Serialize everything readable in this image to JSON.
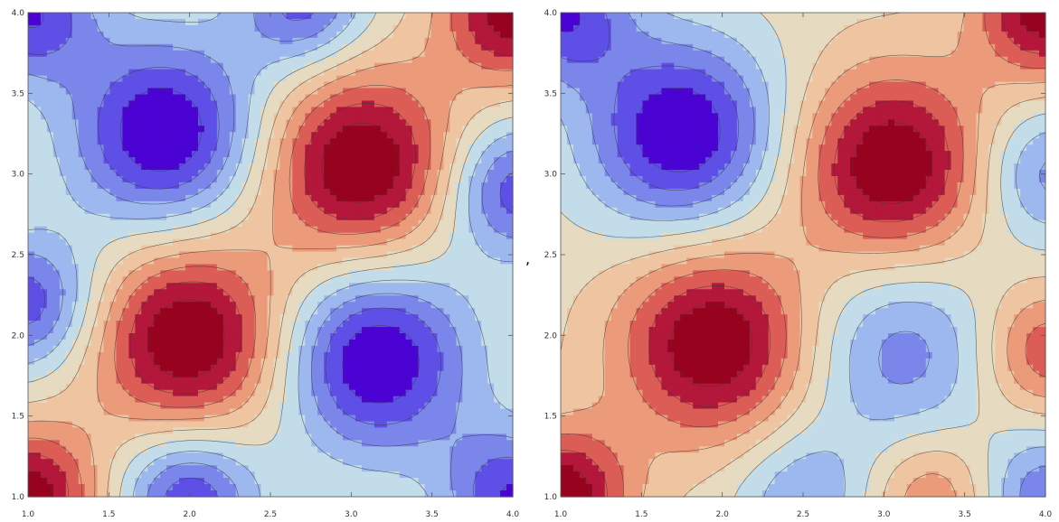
{
  "separator": ",",
  "chart_data": [
    {
      "type": "contour",
      "xlim": [
        1.0,
        4.0
      ],
      "ylim": [
        1.0,
        4.0
      ],
      "x_ticks": [
        "1.0",
        "1.5",
        "2.0",
        "2.5",
        "3.0",
        "3.5",
        "4.0"
      ],
      "y_ticks": [
        "1.0",
        "1.5",
        "2.0",
        "2.5",
        "3.0",
        "3.5",
        "4.0"
      ],
      "levels": 11,
      "colormap": [
        "#4b03d4",
        "#5e4fe6",
        "#7a86ea",
        "#9cb8ee",
        "#c3dcea",
        "#e6dbc0",
        "#efc4a0",
        "#eb9a7a",
        "#dc5c56",
        "#b3173a",
        "#97031f"
      ],
      "peaks": [
        {
          "x": 1.85,
          "y": 3.25,
          "amp": -1.0,
          "sigma": 0.42
        },
        {
          "x": 3.05,
          "y": 3.05,
          "amp": 1.0,
          "sigma": 0.42
        },
        {
          "x": 2.0,
          "y": 1.98,
          "amp": 1.0,
          "sigma": 0.42
        },
        {
          "x": 3.15,
          "y": 1.85,
          "amp": -1.0,
          "sigma": 0.42
        },
        {
          "x": 1.0,
          "y": 2.2,
          "amp": -0.75,
          "sigma": 0.3
        },
        {
          "x": 4.0,
          "y": 2.9,
          "amp": -0.75,
          "sigma": 0.3
        },
        {
          "x": 1.0,
          "y": 1.0,
          "amp": 0.9,
          "sigma": 0.3
        },
        {
          "x": 4.0,
          "y": 4.0,
          "amp": 0.9,
          "sigma": 0.3
        },
        {
          "x": 2.0,
          "y": 1.0,
          "amp": -0.8,
          "sigma": 0.3
        },
        {
          "x": 4.0,
          "y": 1.0,
          "amp": -0.8,
          "sigma": 0.3
        },
        {
          "x": 1.0,
          "y": 4.0,
          "amp": -0.8,
          "sigma": 0.3
        },
        {
          "x": 2.7,
          "y": 4.05,
          "amp": -0.7,
          "sigma": 0.28
        }
      ]
    },
    {
      "type": "contour",
      "xlim": [
        1.0,
        4.0
      ],
      "ylim": [
        1.0,
        4.0
      ],
      "x_ticks": [
        "1.0",
        "1.5",
        "2.0",
        "2.5",
        "3.0",
        "3.5",
        "4.0"
      ],
      "y_ticks": [
        "1.0",
        "1.5",
        "2.0",
        "2.5",
        "3.0",
        "3.5",
        "4.0"
      ],
      "levels": 11,
      "colormap": [
        "#4b03d4",
        "#5e4fe6",
        "#7a86ea",
        "#9cb8ee",
        "#c3dcea",
        "#e6dbc0",
        "#efc4a0",
        "#eb9a7a",
        "#dc5c56",
        "#b3173a",
        "#97031f"
      ],
      "peaks": [
        {
          "x": 1.75,
          "y": 3.25,
          "amp": -1.0,
          "sigma": 0.42
        },
        {
          "x": 3.05,
          "y": 3.05,
          "amp": 1.0,
          "sigma": 0.42
        },
        {
          "x": 1.95,
          "y": 1.95,
          "amp": 1.0,
          "sigma": 0.42
        },
        {
          "x": 3.1,
          "y": 1.9,
          "amp": -0.55,
          "sigma": 0.42
        },
        {
          "x": 4.0,
          "y": 3.0,
          "amp": -0.55,
          "sigma": 0.3
        },
        {
          "x": 1.0,
          "y": 1.0,
          "amp": 0.95,
          "sigma": 0.3
        },
        {
          "x": 4.0,
          "y": 4.0,
          "amp": 0.9,
          "sigma": 0.3
        },
        {
          "x": 4.0,
          "y": 1.9,
          "amp": 0.6,
          "sigma": 0.28
        },
        {
          "x": 1.0,
          "y": 4.0,
          "amp": -0.8,
          "sigma": 0.3
        },
        {
          "x": 2.5,
          "y": 1.0,
          "amp": -0.45,
          "sigma": 0.3
        },
        {
          "x": 3.3,
          "y": 1.0,
          "amp": 0.45,
          "sigma": 0.28
        },
        {
          "x": 4.0,
          "y": 1.0,
          "amp": -0.6,
          "sigma": 0.28
        }
      ]
    }
  ]
}
